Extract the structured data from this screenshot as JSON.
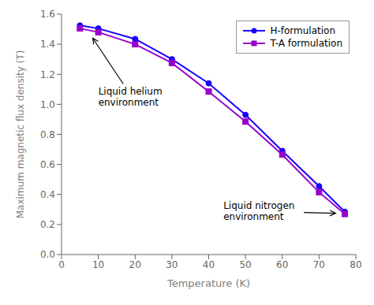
{
  "chart_data": {
    "type": "line",
    "x_label": "Temperature (K)",
    "y_label": "Maximum magnetic flux density (T)",
    "x": [
      5,
      10,
      20,
      30,
      40,
      50,
      60,
      70,
      77
    ],
    "series": [
      {
        "name": "H-formulation",
        "color": "#1a00ff",
        "marker": "circle",
        "values": [
          1.525,
          1.505,
          1.435,
          1.3,
          1.14,
          0.93,
          0.69,
          0.455,
          0.285
        ]
      },
      {
        "name": "T-A formulation",
        "color": "#9900cc",
        "marker": "square",
        "values": [
          1.505,
          1.48,
          1.4,
          1.275,
          1.085,
          0.885,
          0.665,
          0.415,
          0.27
        ]
      }
    ],
    "xlim": [
      0,
      80
    ],
    "ylim": [
      0.0,
      1.6
    ],
    "xticks": [
      0,
      10,
      20,
      30,
      40,
      50,
      60,
      70,
      80
    ],
    "yticks": [
      {
        "value": 0,
        "label": "0.0"
      },
      0.2,
      0.4,
      0.6,
      0.8,
      {
        "value": 1,
        "label": "1.0"
      },
      1.2,
      1.4,
      1.6
    ],
    "annotations": [
      {
        "text": "Liquid helium\nenvironment",
        "point": [
          8.5,
          1.44
        ],
        "text_at": [
          10,
          1.12
        ]
      },
      {
        "text": "Liquid nitrogen\nenvironment",
        "point": [
          74.5,
          0.275
        ],
        "text_at": [
          44,
          0.36
        ]
      }
    ],
    "legend": "upper right",
    "grid": false
  }
}
